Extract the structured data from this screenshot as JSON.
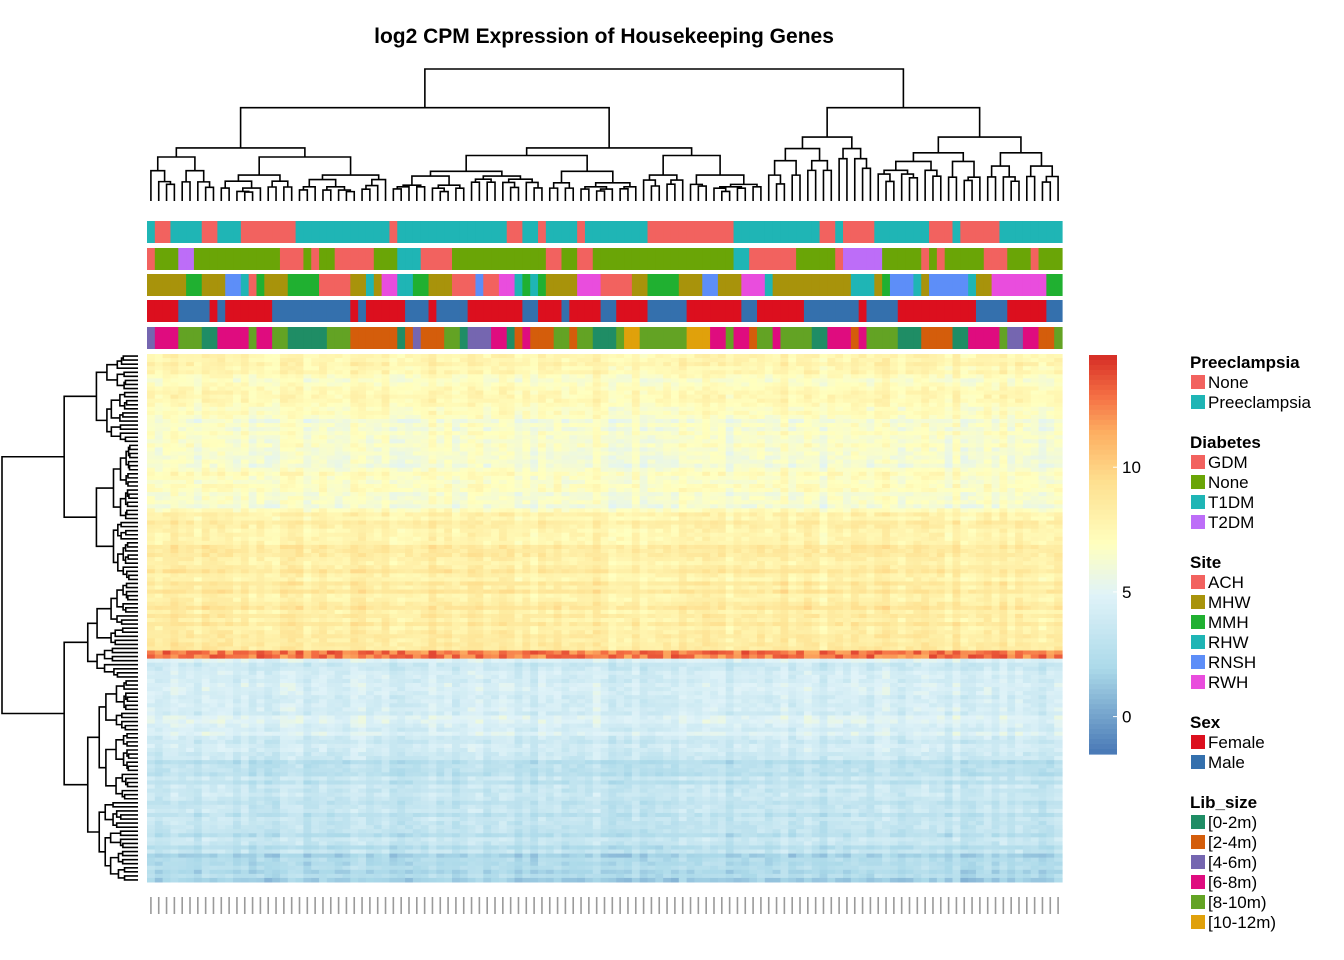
{
  "chart_data": {
    "type": "heatmap",
    "title": "log2 CPM Expression of Housekeeping Genes",
    "n_columns": 117,
    "n_row_bands": 130,
    "color_scale": {
      "stops": [
        {
          "value": -1.5,
          "color": "#4575b4"
        },
        {
          "value": 2.0,
          "color": "#abd9e9"
        },
        {
          "value": 5.0,
          "color": "#e0f3f8"
        },
        {
          "value": 7.0,
          "color": "#ffffbf"
        },
        {
          "value": 9.5,
          "color": "#fee090"
        },
        {
          "value": 11.5,
          "color": "#fdae61"
        },
        {
          "value": 13.0,
          "color": "#f46d43"
        },
        {
          "value": 14.5,
          "color": "#d73027"
        }
      ],
      "ticks": [
        {
          "value": 10,
          "label": "10"
        },
        {
          "value": 5,
          "label": "5"
        },
        {
          "value": 0,
          "label": "0"
        }
      ]
    },
    "row_dendrogram": "clustered rows (genes) shown on left",
    "column_dendrogram": "clustered columns (samples) shown on top",
    "annotation_tracks": [
      "Preeclampsia",
      "Diabetes",
      "Site",
      "Sex",
      "Lib_size"
    ],
    "legends": [
      {
        "title": "Preeclampsia",
        "entries": [
          {
            "label": "None",
            "color": "#f2625f"
          },
          {
            "label": "Preeclampsia",
            "color": "#1fb5b5"
          }
        ]
      },
      {
        "title": "Diabetes",
        "entries": [
          {
            "label": "GDM",
            "color": "#f2625f"
          },
          {
            "label": "None",
            "color": "#6aa507"
          },
          {
            "label": "T1DM",
            "color": "#1fb5b5"
          },
          {
            "label": "T2DM",
            "color": "#bd6df8"
          }
        ]
      },
      {
        "title": "Site",
        "entries": [
          {
            "label": "ACH",
            "color": "#f2625f"
          },
          {
            "label": "MHW",
            "color": "#a8930b"
          },
          {
            "label": "MMH",
            "color": "#20b031"
          },
          {
            "label": "RHW",
            "color": "#1fb5b5"
          },
          {
            "label": "RNSH",
            "color": "#5d8ef8"
          },
          {
            "label": "RWH",
            "color": "#e94ddd"
          }
        ]
      },
      {
        "title": "Sex",
        "entries": [
          {
            "label": "Female",
            "color": "#dc0f1e"
          },
          {
            "label": "Male",
            "color": "#3470ad"
          }
        ]
      },
      {
        "title": "Lib_size",
        "entries": [
          {
            "label": "[0-2m)",
            "color": "#1f8d65"
          },
          {
            "label": "[2-4m)",
            "color": "#d45d0b"
          },
          {
            "label": "[4-6m)",
            "color": "#7566b0"
          },
          {
            "label": "[6-8m)",
            "color": "#df0c7f"
          },
          {
            "label": "[8-10m)",
            "color": "#63a324"
          },
          {
            "label": "[10-12m)",
            "color": "#e0a10b"
          }
        ]
      }
    ]
  }
}
